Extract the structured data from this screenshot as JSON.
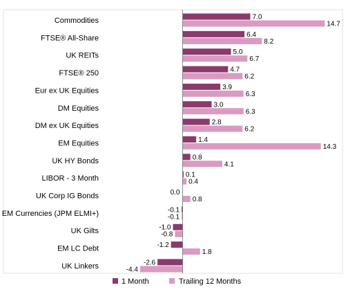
{
  "chart_data": {
    "type": "bar",
    "orientation": "horizontal",
    "categories": [
      "Commodities",
      "FTSE® All-Share",
      "UK REITs",
      "FTSE® 250",
      "Eur ex UK Equities",
      "DM Equities",
      "DM ex UK Equities",
      "EM Equities",
      "UK HY Bonds",
      "LIBOR - 3 Month",
      "UK Corp IG Bonds",
      "EM Currencies (JPM ELMI+)",
      "UK Gilts",
      "EM LC Debt",
      "UK Linkers"
    ],
    "series": [
      {
        "name": "1 Month",
        "color": "#8b3a6b",
        "values": [
          7.0,
          6.4,
          5.0,
          4.7,
          3.9,
          3.0,
          2.8,
          1.4,
          0.8,
          0.1,
          0.0,
          -0.1,
          -1.0,
          -1.2,
          -2.6
        ]
      },
      {
        "name": "Trailing 12 Months",
        "color": "#d99bc1",
        "values": [
          14.7,
          8.2,
          6.7,
          6.2,
          6.3,
          6.3,
          6.2,
          14.3,
          4.1,
          0.4,
          0.8,
          -0.1,
          -0.8,
          1.8,
          -4.4
        ]
      }
    ],
    "xlim": [
      -5.5,
      15.5
    ],
    "legend_position": "bottom",
    "grid": false,
    "data_labels": true
  }
}
